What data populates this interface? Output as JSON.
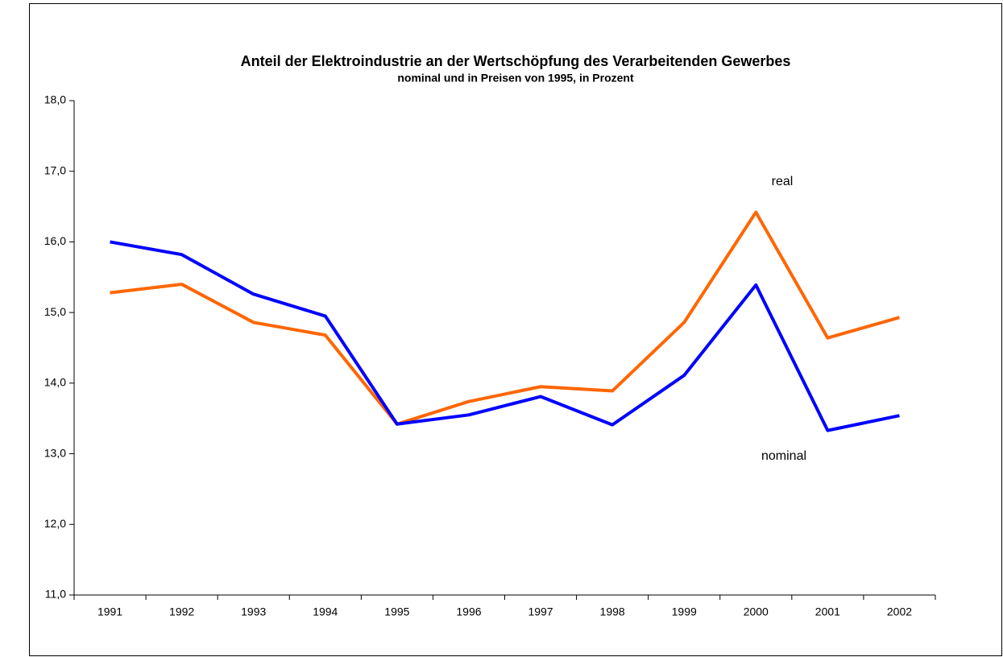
{
  "chart_data": {
    "type": "line",
    "title": "Anteil der Elektroindustrie an der Wertschöpfung des Verarbeitenden Gewerbes",
    "subtitle": "nominal und in Preisen von 1995, in Prozent",
    "categories": [
      "1991",
      "1992",
      "1993",
      "1994",
      "1995",
      "1996",
      "1997",
      "1998",
      "1999",
      "2000",
      "2001",
      "2002"
    ],
    "series": [
      {
        "name": "real",
        "color": "#ff6600",
        "values": [
          15.28,
          15.4,
          14.86,
          14.68,
          13.42,
          13.74,
          13.95,
          13.89,
          14.86,
          16.42,
          14.64,
          14.93
        ]
      },
      {
        "name": "nominal",
        "color": "#0000ff",
        "values": [
          16.0,
          15.82,
          15.26,
          14.95,
          13.42,
          13.55,
          13.81,
          13.41,
          14.11,
          15.39,
          13.33,
          13.54
        ]
      }
    ],
    "ylim": [
      11,
      18
    ],
    "yticks": [
      {
        "value": 11,
        "label": "11,0"
      },
      {
        "value": 12,
        "label": "12,0"
      },
      {
        "value": 13,
        "label": "13,0"
      },
      {
        "value": 14,
        "label": "14,0"
      },
      {
        "value": 15,
        "label": "15,0"
      },
      {
        "value": 16,
        "label": "16,0"
      },
      {
        "value": 17,
        "label": "17,0"
      },
      {
        "value": 18,
        "label": "18,0"
      }
    ],
    "grid": false
  }
}
